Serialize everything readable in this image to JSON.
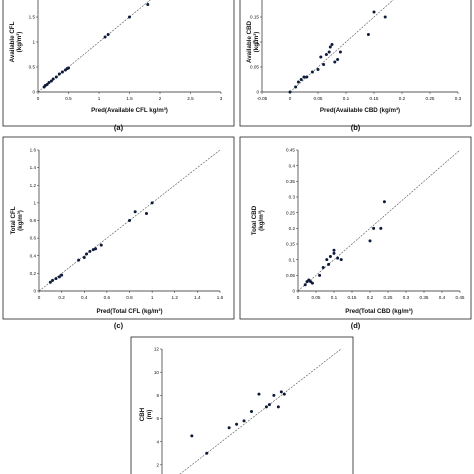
{
  "chart_data": [
    {
      "type": "scatter",
      "caption": "(a)",
      "xlabel": "Pred(Available CFL kg/m³)",
      "ylabel": "Available CFL",
      "yunit": "(kg/m³)",
      "xlim": [
        0,
        3
      ],
      "ylim": [
        0,
        2
      ],
      "xticks": [
        "0",
        "0.5",
        "1",
        "1.5",
        "2",
        "2.5",
        "3"
      ],
      "yticks": [
        "0",
        "0.5",
        "1",
        "1.5"
      ],
      "x": [
        0.1,
        0.12,
        0.15,
        0.18,
        0.22,
        0.25,
        0.3,
        0.35,
        0.4,
        0.45,
        0.48,
        0.5,
        1.1,
        1.15,
        1.5,
        1.8
      ],
      "y": [
        0.1,
        0.13,
        0.15,
        0.19,
        0.22,
        0.26,
        0.3,
        0.36,
        0.4,
        0.44,
        0.47,
        0.48,
        1.1,
        1.15,
        1.5,
        1.75
      ]
    },
    {
      "type": "scatter",
      "caption": "(b)",
      "xlabel": "Pred(Available CBD (kg/m³)",
      "ylabel": "Available CBD",
      "yunit": "(kg/m³)",
      "xlim": [
        -0.05,
        0.3
      ],
      "ylim": [
        0,
        0.2
      ],
      "xticks": [
        "-0.05",
        "0",
        "0.05",
        "0.1",
        "0.15",
        "0.2",
        "0.25",
        "0.3"
      ],
      "yticks": [
        "0",
        "0.05",
        "0.1",
        "0.15"
      ],
      "x": [
        0.0,
        0.01,
        0.015,
        0.02,
        0.025,
        0.03,
        0.04,
        0.05,
        0.055,
        0.06,
        0.065,
        0.07,
        0.072,
        0.075,
        0.08,
        0.085,
        0.09,
        0.14,
        0.15,
        0.17
      ],
      "y": [
        0.0,
        0.01,
        0.02,
        0.025,
        0.03,
        0.03,
        0.04,
        0.045,
        0.07,
        0.055,
        0.075,
        0.08,
        0.09,
        0.095,
        0.06,
        0.065,
        0.08,
        0.115,
        0.16,
        0.15
      ]
    },
    {
      "type": "scatter",
      "caption": "(c)",
      "xlabel": "Pred(Total CFL  (kg/m³)",
      "ylabel": "Total CFL",
      "yunit": "(kg/m³)",
      "xlim": [
        0,
        1.6
      ],
      "ylim": [
        0,
        1.6
      ],
      "xticks": [
        "0",
        "0.2",
        "0.4",
        "0.6",
        "0.8",
        "1",
        "1.2",
        "1.4",
        "1.6"
      ],
      "yticks": [
        "0",
        "0.2",
        "0.4",
        "0.6",
        "0.8",
        "1",
        "1.2",
        "1.4",
        "1.6"
      ],
      "x": [
        0.1,
        0.12,
        0.15,
        0.18,
        0.2,
        0.35,
        0.4,
        0.42,
        0.45,
        0.48,
        0.5,
        0.55,
        0.8,
        0.85,
        0.95,
        1.0
      ],
      "y": [
        0.1,
        0.12,
        0.14,
        0.16,
        0.18,
        0.35,
        0.38,
        0.42,
        0.45,
        0.47,
        0.48,
        0.52,
        0.8,
        0.9,
        0.88,
        1.0
      ]
    },
    {
      "type": "scatter",
      "caption": "(d)",
      "xlabel": "Pred(Total CBD (kg/m³)",
      "ylabel": "Total CBD",
      "yunit": "(kg/m³)",
      "xlim": [
        0,
        0.45
      ],
      "ylim": [
        0,
        0.45
      ],
      "xticks": [
        "0",
        "0.05",
        "0.1",
        "0.15",
        "0.2",
        "0.25",
        "0.3",
        "0.35",
        "0.4",
        "0.45"
      ],
      "yticks": [
        "0",
        "0.05",
        "0.1",
        "0.15",
        "0.2",
        "0.25",
        "0.3",
        "0.35",
        "0.4",
        "0.45"
      ],
      "x": [
        0.02,
        0.025,
        0.03,
        0.035,
        0.04,
        0.06,
        0.07,
        0.08,
        0.085,
        0.09,
        0.1,
        0.1,
        0.11,
        0.12,
        0.2,
        0.21,
        0.23,
        0.24
      ],
      "y": [
        0.02,
        0.03,
        0.035,
        0.03,
        0.025,
        0.05,
        0.075,
        0.1,
        0.085,
        0.11,
        0.12,
        0.13,
        0.105,
        0.1,
        0.16,
        0.2,
        0.2,
        0.285
      ]
    },
    {
      "type": "scatter",
      "caption": "",
      "xlabel": "",
      "ylabel": "CBH",
      "yunit": "(m)",
      "xlim": [
        0,
        12
      ],
      "ylim": [
        0,
        12
      ],
      "xticks": [],
      "yticks": [
        "2",
        "4",
        "6",
        "8",
        "10",
        "12"
      ],
      "x": [
        2.0,
        3.0,
        4.5,
        5.0,
        5.5,
        6.0,
        6.5,
        7.0,
        7.2,
        7.5,
        7.8,
        8.0,
        8.2
      ],
      "y": [
        4.5,
        3.0,
        5.2,
        5.5,
        5.8,
        6.6,
        8.1,
        7.0,
        7.2,
        8.0,
        7.0,
        8.3,
        8.1
      ]
    }
  ]
}
